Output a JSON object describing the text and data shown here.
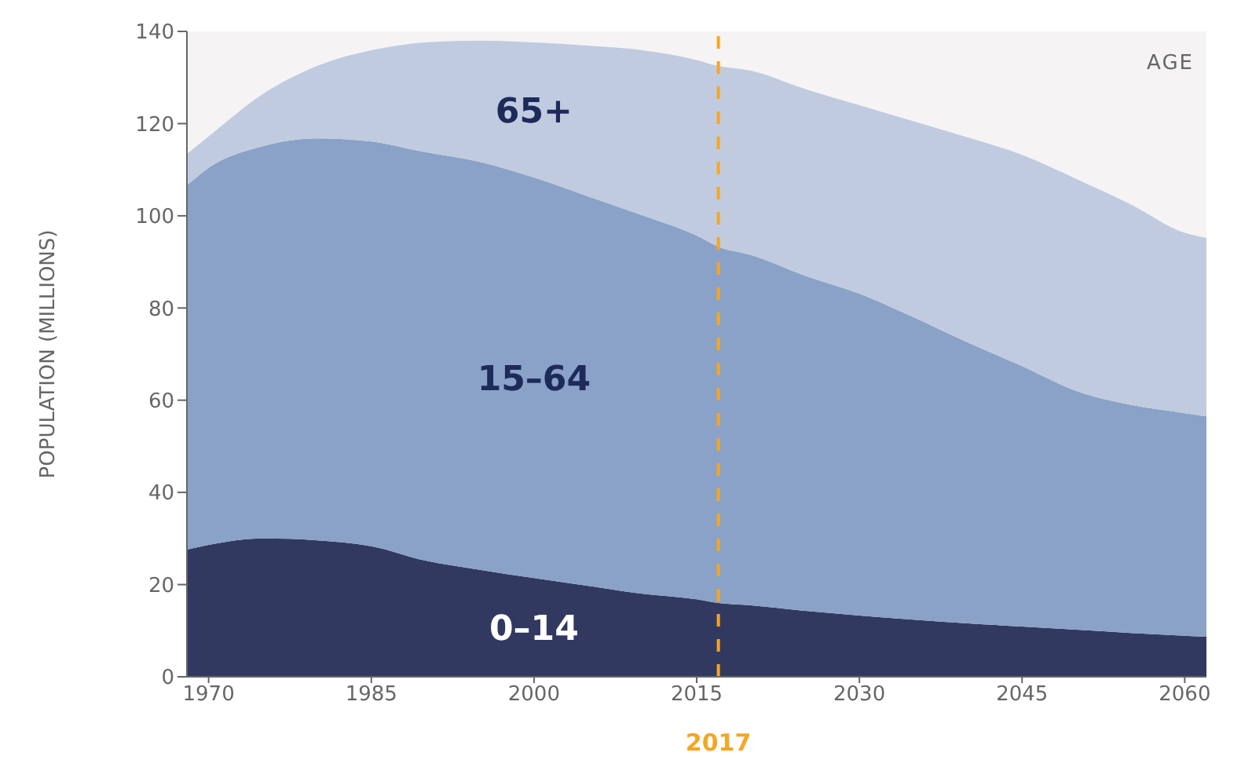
{
  "chart_data": {
    "type": "area",
    "stacked": true,
    "ylabel": "POPULATION (MILLIONS)",
    "annotations": [
      "AGE"
    ],
    "xlim": [
      1968,
      2062
    ],
    "xticks": [
      1970,
      1985,
      2000,
      2015,
      2030,
      2045,
      2060
    ],
    "ylim": [
      0,
      140
    ],
    "yticks": [
      0,
      20,
      40,
      60,
      80,
      100,
      120,
      140
    ],
    "grid": false,
    "legend": false,
    "x": [
      1968,
      1970,
      1975,
      1980,
      1985,
      1990,
      1995,
      2000,
      2005,
      2010,
      2015,
      2017,
      2020,
      2025,
      2030,
      2035,
      2040,
      2045,
      2050,
      2055,
      2060,
      2062
    ],
    "series": [
      {
        "name": "0–14",
        "color": "#313961",
        "values": [
          27.6,
          28.6,
          30,
          29.6,
          28.3,
          25.2,
          23.2,
          21.4,
          19.7,
          18,
          16.8,
          16,
          15.5,
          14.3,
          13.3,
          12.4,
          11.6,
          10.9,
          10.2,
          9.5,
          8.9,
          8.7
        ]
      },
      {
        "name": "15–64",
        "color": "#8aa2c7",
        "values": [
          79,
          81.8,
          85.1,
          87.2,
          87.8,
          88.6,
          88.5,
          86.9,
          84.5,
          82.1,
          78.9,
          77.3,
          76,
          72.7,
          69.8,
          65.6,
          60.9,
          56.5,
          51.8,
          49.5,
          48.3,
          47.8
        ]
      },
      {
        "name": "65+",
        "color": "#c0cbe0",
        "values": [
          6.8,
          6.8,
          11.3,
          15.7,
          19.8,
          23.8,
          26.3,
          29.3,
          32.7,
          35.8,
          38.1,
          39.2,
          40,
          40.5,
          40.9,
          42.5,
          44.5,
          45.8,
          46,
          43.5,
          39.1,
          38.7
        ]
      }
    ],
    "ref_lines": [
      {
        "axis": "x",
        "value": 2017,
        "label": "2017",
        "color": "#f5a623",
        "line_style": "dashed"
      }
    ]
  }
}
